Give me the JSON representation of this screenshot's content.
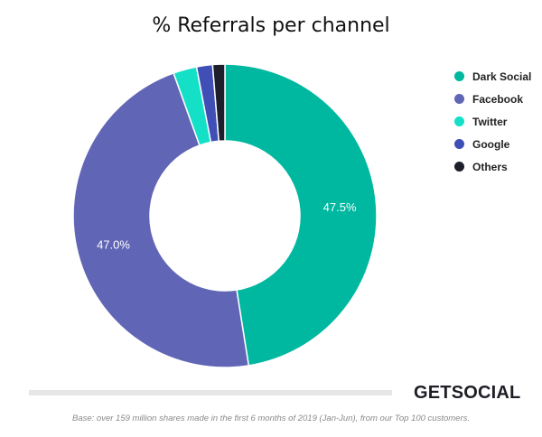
{
  "chart_data": {
    "type": "pie",
    "title": "% Referrals per channel",
    "categories": [
      "Dark Social",
      "Facebook",
      "Twitter",
      "Google",
      "Others"
    ],
    "values": [
      47.5,
      47.0,
      2.5,
      1.7,
      1.3
    ],
    "data_labels": [
      "47.5%",
      "47.0%",
      "",
      "",
      ""
    ],
    "colors": [
      "#00b8a0",
      "#6165b5",
      "#14e0c8",
      "#3f4fb5",
      "#1e1f2c"
    ],
    "donut": true,
    "legend_position": "right"
  },
  "brand": "GETSOCIAL",
  "footnote": "Base: over 159 million shares made in the first 6 months of 2019 (Jan-Jun), from our Top 100 customers."
}
